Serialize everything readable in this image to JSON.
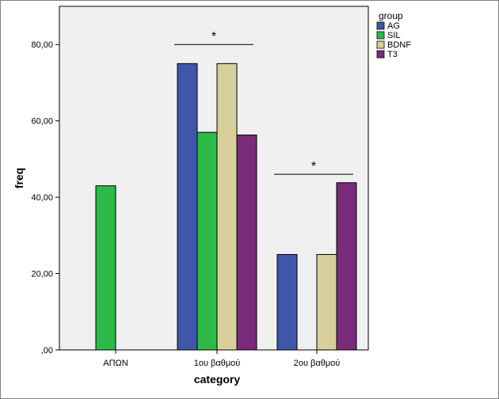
{
  "chart_data": {
    "type": "bar",
    "xlabel": "category",
    "ylabel": "freq",
    "categories": [
      "ΑΠΩΝ",
      "1ου βαθμού",
      "2ου βαθμού"
    ],
    "ylim": [
      0,
      90
    ],
    "yticks": [
      0,
      20,
      40,
      60,
      80
    ],
    "ytick_labels": [
      ",00",
      "20,00",
      "40,00",
      "60,00",
      "80,00"
    ],
    "grid": false,
    "legend_position": "right",
    "legend_title": "group",
    "series": [
      {
        "name": "AG",
        "color": "#3F57A8",
        "values": [
          null,
          75,
          25
        ]
      },
      {
        "name": "SIL",
        "color": "#2DBA47",
        "values": [
          43,
          57,
          0
        ]
      },
      {
        "name": "BDNF",
        "color": "#D8D09A",
        "values": [
          null,
          75,
          25
        ]
      },
      {
        "name": "T3",
        "color": "#7A2A7B",
        "values": [
          null,
          56.3,
          43.8
        ]
      }
    ],
    "annotations": [
      {
        "text": "*",
        "category": "1ου βαθμού",
        "y": 80
      },
      {
        "text": "*",
        "category": "2ου βαθμού",
        "y": 46
      }
    ]
  },
  "colors": {
    "plot_background": "#F0F0F0",
    "frame": "#000000"
  }
}
